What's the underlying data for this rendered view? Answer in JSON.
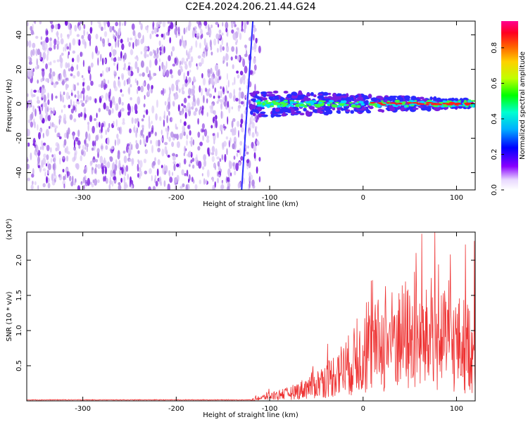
{
  "figure": {
    "title": "C2E4.2024.206.21.44.G24"
  },
  "colors": {
    "scatter_light": "#d9c4f5",
    "scatter_mid": "#b48be8",
    "scatter_dark": "#7a1fe0",
    "signal_blue": "#2a2aff",
    "signal_cyan": "#00d8ff",
    "signal_green": "#40ff40",
    "signal_red": "#ff2020",
    "snr_line": "#ee3333"
  },
  "chart_data": [
    {
      "type": "heatmap",
      "title": "C2E4.2024.206.21.44.G24",
      "xlabel": "Height of straight line (km)",
      "ylabel": "Frequency (Hz)",
      "xlim": [
        -360,
        120
      ],
      "ylim": [
        -50,
        48
      ],
      "xticks": [
        -300,
        -200,
        -100,
        0,
        100
      ],
      "yticks": [
        -40,
        -20,
        0,
        20,
        40
      ],
      "noise_region_x": [
        -360,
        -115
      ],
      "signal_center_hz": 0,
      "signal_start_km": -120,
      "colorbar": {
        "label": "Normalized spectral amplitude",
        "range": [
          0.0,
          0.95
        ],
        "ticks": [
          0.0,
          0.2,
          0.4,
          0.6,
          0.8
        ]
      }
    },
    {
      "type": "line",
      "xlabel": "Height of straight line (km)",
      "ylabel": "SNR (10 * v/v)",
      "y_scale_label": "(x10⁴)",
      "xlim": [
        -360,
        120
      ],
      "ylim": [
        0,
        2.4
      ],
      "xticks": [
        -300,
        -200,
        -100,
        0,
        100
      ],
      "yticks": [
        0.5,
        1.0,
        1.5,
        2.0
      ],
      "series": [
        {
          "name": "SNR",
          "x": [
            -360,
            -300,
            -200,
            -120,
            -100,
            -80,
            -60,
            -40,
            -20,
            0,
            20,
            40,
            60,
            80,
            100,
            120
          ],
          "values": [
            0.01,
            0.01,
            0.01,
            0.01,
            0.08,
            0.12,
            0.22,
            0.35,
            0.55,
            0.75,
            0.95,
            1.05,
            1.0,
            1.0,
            0.95,
            0.9
          ]
        }
      ]
    }
  ]
}
